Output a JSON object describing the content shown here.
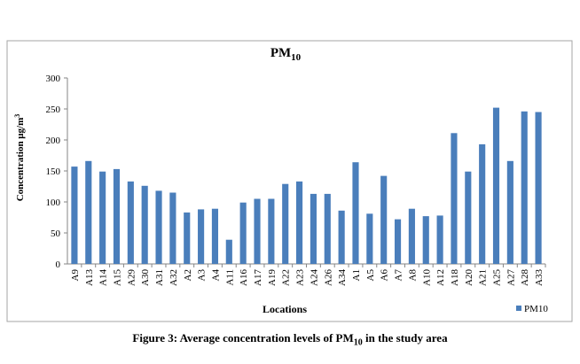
{
  "chart_data": {
    "type": "bar",
    "title": "PM10",
    "title_main": "PM",
    "title_sub": "10",
    "xlabel": "Locations",
    "ylabel": "Concentration  μg/m",
    "ylabel_sup": "3",
    "ylim": [
      0,
      300
    ],
    "yticks": [
      0,
      50,
      100,
      150,
      200,
      250,
      300
    ],
    "grid": false,
    "legend_position": "bottom-right",
    "categories": [
      "A9",
      "A13",
      "A14",
      "A15",
      "A29",
      "A30",
      "A31",
      "A32",
      "A2",
      "A3",
      "A4",
      "A11",
      "A16",
      "A17",
      "A19",
      "A22",
      "A23",
      "A24",
      "A26",
      "A34",
      "A1",
      "A5",
      "A6",
      "A7",
      "A8",
      "A10",
      "A12",
      "A18",
      "A20",
      "A21",
      "A25",
      "A27",
      "A28",
      "A33"
    ],
    "series": [
      {
        "name": "PM10",
        "color": "#4a7ebb",
        "values": [
          157,
          166,
          149,
          153,
          133,
          126,
          118,
          115,
          83,
          88,
          89,
          39,
          99,
          105,
          105,
          129,
          133,
          113,
          113,
          86,
          164,
          81,
          142,
          72,
          89,
          77,
          78,
          211,
          149,
          193,
          252,
          166,
          246,
          245
        ]
      }
    ]
  },
  "caption": {
    "prefix": "Figure 3: Average concentration levels of PM",
    "sub": "10",
    "suffix": " in the study area"
  }
}
